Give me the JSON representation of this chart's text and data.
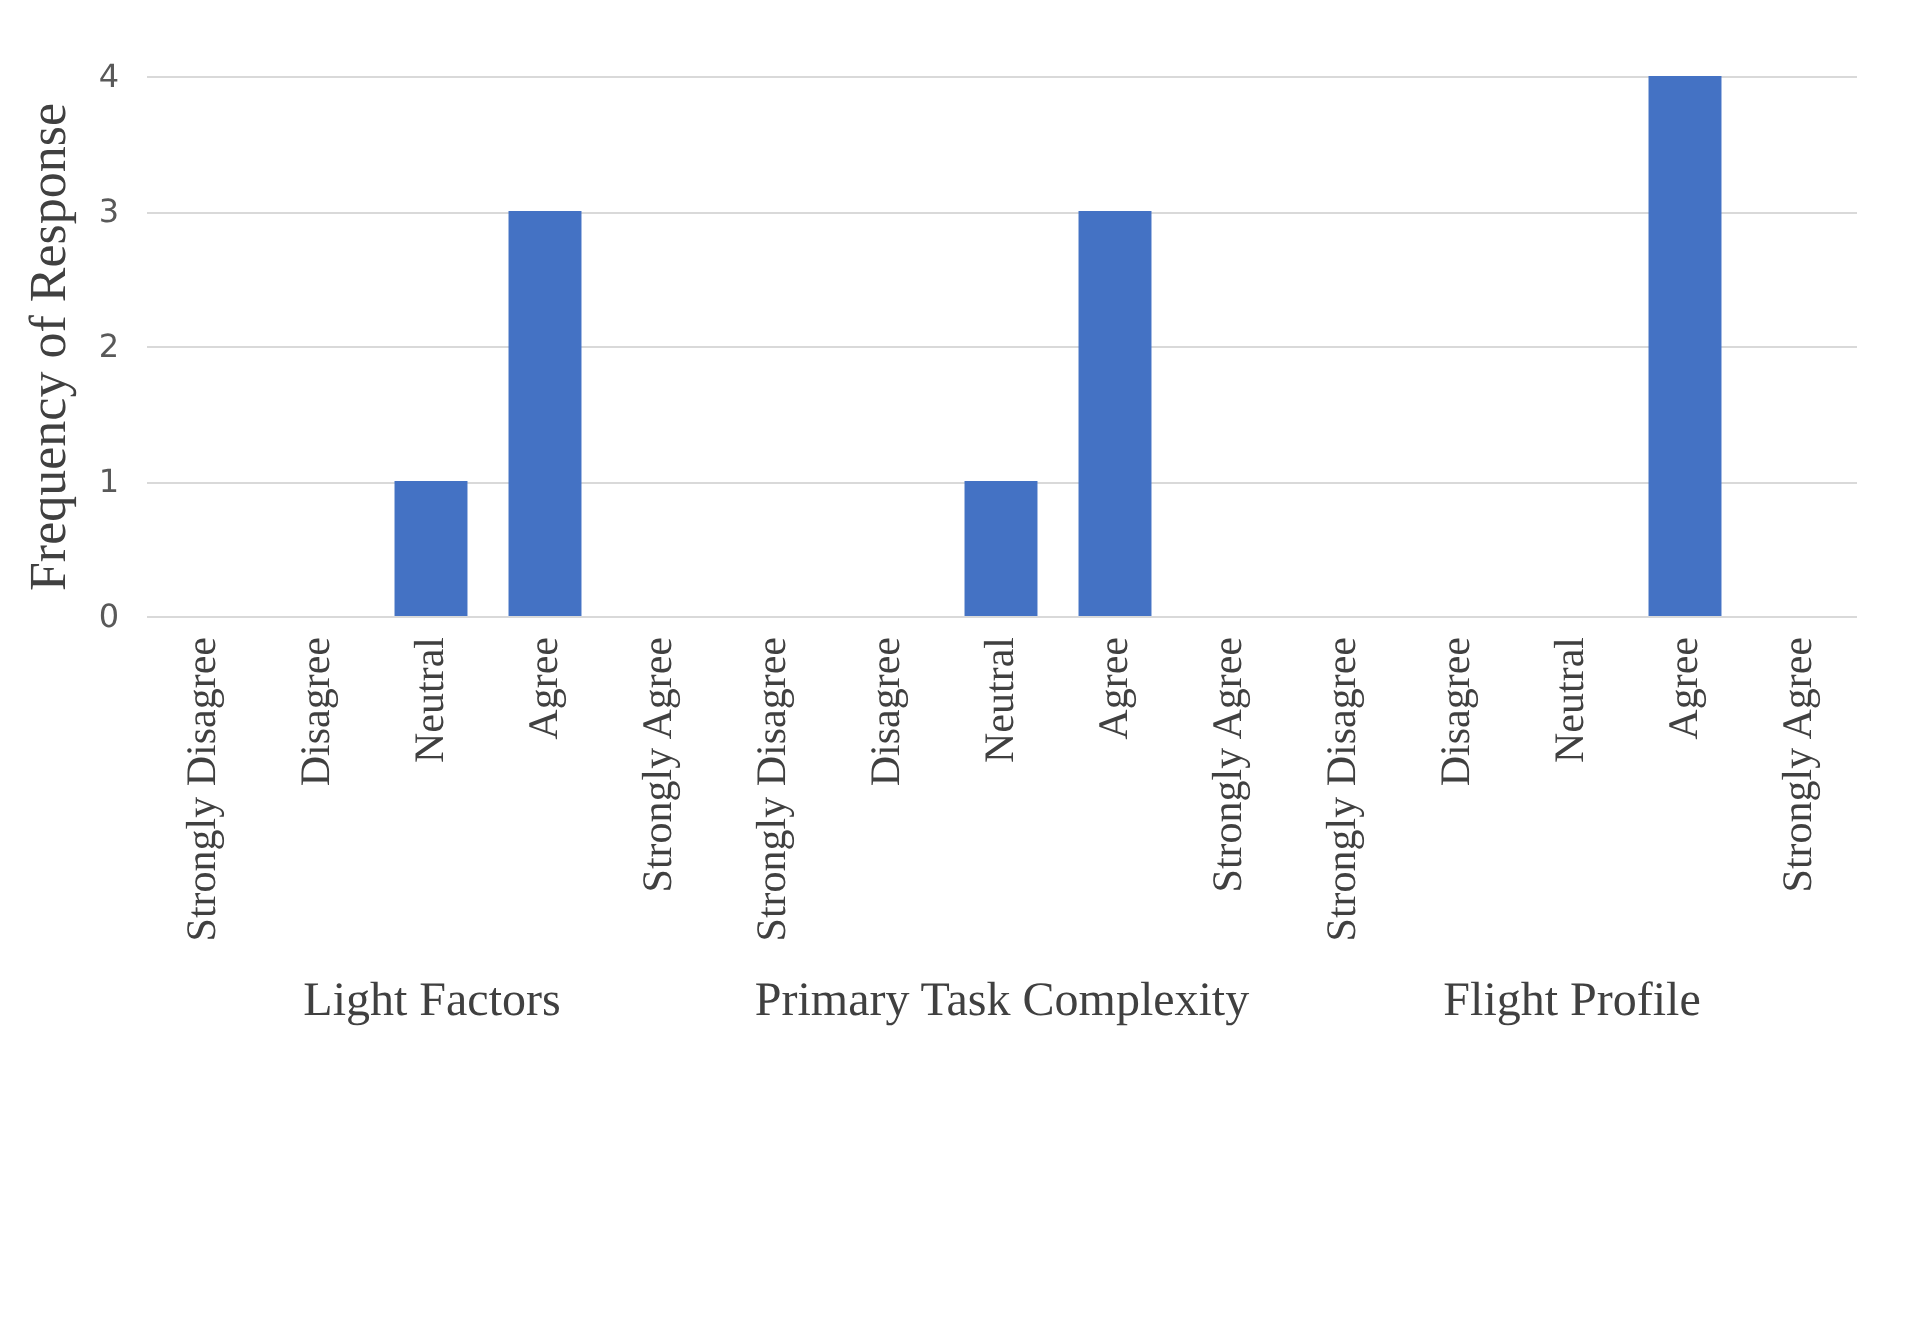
{
  "chart_data": [
    {
      "type": "bar",
      "xlabel": "Light Factors",
      "ylabel": "Frequency of Response",
      "categories": [
        "Strongly Disagree",
        "Disagree",
        "Neutral",
        "Agree",
        "Strongly Agree"
      ],
      "values": [
        0,
        0,
        1,
        3,
        0
      ],
      "color": "#4472c4",
      "ylim": [
        0,
        4
      ],
      "yticks": [
        0,
        1,
        2,
        3,
        4
      ],
      "grid": "y"
    },
    {
      "type": "bar",
      "xlabel": "Primary Task Complexity",
      "categories": [
        "Strongly Disagree",
        "Disagree",
        "Neutral",
        "Agree",
        "Strongly Agree"
      ],
      "values": [
        0,
        0,
        1,
        3,
        0
      ],
      "color": "#4472c4",
      "ylim": [
        0,
        4
      ],
      "yticks": [
        0,
        1,
        2,
        3,
        4
      ],
      "grid": "y",
      "tick_labels": "x"
    },
    {
      "type": "bar",
      "xlabel": "Flight Profile",
      "categories": [
        "Strongly Disagree",
        "Disagree",
        "Neutral",
        "Agree",
        "Strongly Agree"
      ],
      "values": [
        0,
        0,
        0,
        4,
        0
      ],
      "color": "#4472c4",
      "ylim": [
        0,
        4
      ],
      "yticks": [
        0,
        1,
        2,
        3,
        4
      ],
      "grid": "y",
      "tick_labels": "x"
    }
  ]
}
